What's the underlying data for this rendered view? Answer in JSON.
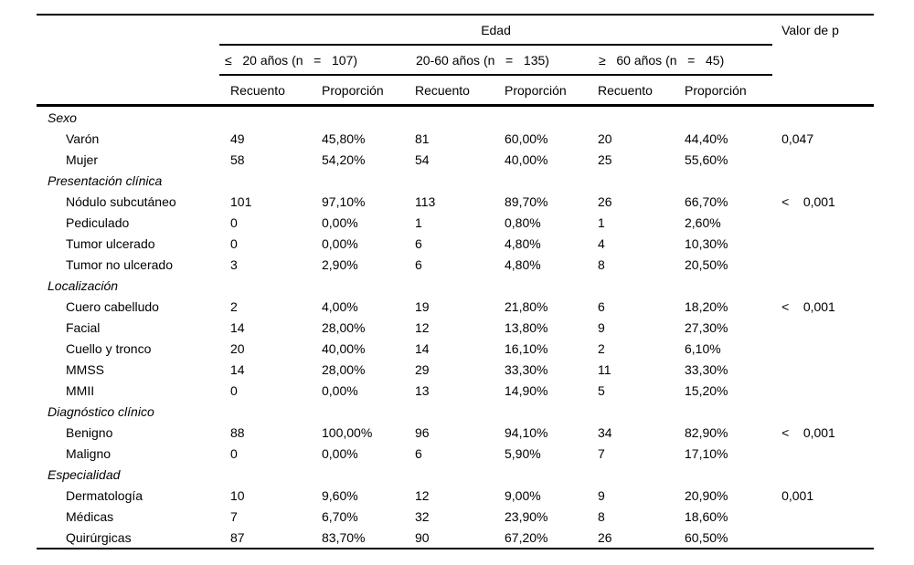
{
  "table": {
    "col_group_header": "Edad",
    "p_header": "Valor de p",
    "age_groups": [
      "≤   20 años (n   =   107)",
      "20-60 años (n   =   135)",
      "≥   60 años (n   =   45)"
    ],
    "measure_headers": [
      "Recuento",
      "Proporción",
      "Recuento",
      "Proporción",
      "Recuento",
      "Proporción"
    ],
    "rows": [
      {
        "type": "section",
        "label": "Sexo"
      },
      {
        "type": "item",
        "label": "Varón",
        "values": [
          "49",
          "45,80%",
          "81",
          "60,00%",
          "20",
          "44,40%"
        ],
        "p": "0,047"
      },
      {
        "type": "item",
        "label": "Mujer",
        "values": [
          "58",
          "54,20%",
          "54",
          "40,00%",
          "25",
          "55,60%"
        ],
        "p": ""
      },
      {
        "type": "section",
        "label": "Presentación clínica"
      },
      {
        "type": "item",
        "label": "Nódulo subcutáneo",
        "values": [
          "101",
          "97,10%",
          "113",
          "89,70%",
          "26",
          "66,70%"
        ],
        "p": "<    0,001"
      },
      {
        "type": "item",
        "label": "Pediculado",
        "values": [
          "0",
          "0,00%",
          "1",
          "0,80%",
          "1",
          "2,60%"
        ],
        "p": ""
      },
      {
        "type": "item",
        "label": "Tumor ulcerado",
        "values": [
          "0",
          "0,00%",
          "6",
          "4,80%",
          "4",
          "10,30%"
        ],
        "p": ""
      },
      {
        "type": "item",
        "label": "Tumor no ulcerado",
        "values": [
          "3",
          "2,90%",
          "6",
          "4,80%",
          "8",
          "20,50%"
        ],
        "p": ""
      },
      {
        "type": "section",
        "label": "Localización"
      },
      {
        "type": "item",
        "label": "Cuero cabelludo",
        "values": [
          "2",
          "4,00%",
          "19",
          "21,80%",
          "6",
          "18,20%"
        ],
        "p": "<    0,001"
      },
      {
        "type": "item",
        "label": "Facial",
        "values": [
          "14",
          "28,00%",
          "12",
          "13,80%",
          "9",
          "27,30%"
        ],
        "p": ""
      },
      {
        "type": "item",
        "label": "Cuello y tronco",
        "values": [
          "20",
          "40,00%",
          "14",
          "16,10%",
          "2",
          "6,10%"
        ],
        "p": ""
      },
      {
        "type": "item",
        "label": "MMSS",
        "values": [
          "14",
          "28,00%",
          "29",
          "33,30%",
          "11",
          "33,30%"
        ],
        "p": ""
      },
      {
        "type": "item",
        "label": "MMII",
        "values": [
          "0",
          "0,00%",
          "13",
          "14,90%",
          "5",
          "15,20%"
        ],
        "p": ""
      },
      {
        "type": "section",
        "label": "Diagnóstico clínico"
      },
      {
        "type": "item",
        "label": "Benigno",
        "values": [
          "88",
          "100,00%",
          "96",
          "94,10%",
          "34",
          "82,90%"
        ],
        "p": "<    0,001"
      },
      {
        "type": "item",
        "label": "Maligno",
        "values": [
          "0",
          "0,00%",
          "6",
          "5,90%",
          "7",
          "17,10%"
        ],
        "p": ""
      },
      {
        "type": "section",
        "label": "Especialidad"
      },
      {
        "type": "item",
        "label": "Dermatología",
        "values": [
          "10",
          "9,60%",
          "12",
          "9,00%",
          "9",
          "20,90%"
        ],
        "p": "0,001"
      },
      {
        "type": "item",
        "label": "Médicas",
        "values": [
          "7",
          "6,70%",
          "32",
          "23,90%",
          "8",
          "18,60%"
        ],
        "p": ""
      },
      {
        "type": "item",
        "label": "Quirúrgicas",
        "values": [
          "87",
          "83,70%",
          "90",
          "67,20%",
          "26",
          "60,50%"
        ],
        "p": ""
      }
    ]
  }
}
